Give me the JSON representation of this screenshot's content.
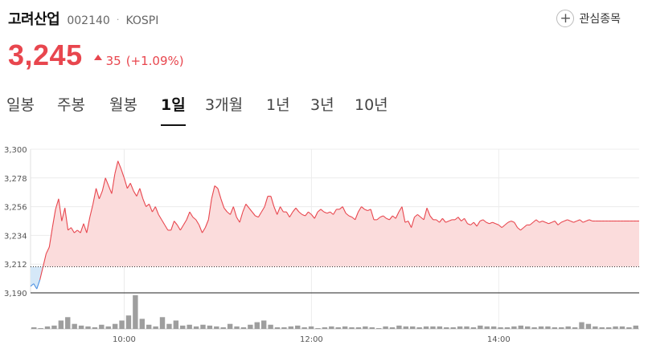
{
  "stock": {
    "name": "고려산업",
    "code": "002140",
    "separator": "·",
    "market": "KOSPI",
    "price": "3,245",
    "change": "35",
    "change_pct": "(+1.09%)",
    "direction": "up"
  },
  "watchlist": {
    "label": "관심종목",
    "icon": "plus-icon"
  },
  "tabs": [
    {
      "label": "일봉",
      "active": false
    },
    {
      "label": "주봉",
      "active": false
    },
    {
      "label": "월봉",
      "active": false
    },
    {
      "label": "1일",
      "active": true
    },
    {
      "label": "3개월",
      "active": false
    },
    {
      "label": "1년",
      "active": false
    },
    {
      "label": "3년",
      "active": false
    },
    {
      "label": "10년",
      "active": false
    }
  ],
  "colors": {
    "up": "#e8464e",
    "down": "#4a90e2",
    "fill_up": "#fbdcdc",
    "fill_down": "#d5e8f8",
    "volume": "#9e9e9e"
  },
  "chart_data": {
    "type": "area",
    "ylim": [
      3190,
      3300
    ],
    "yticks": [
      "3,300",
      "3,278",
      "3,256",
      "3,234",
      "3,212",
      "3,190"
    ],
    "ytick_values": [
      3300,
      3278,
      3256,
      3234,
      3212,
      3190
    ],
    "xticks": [
      "10:00",
      "12:00",
      "14:00"
    ],
    "xtick_minutes": [
      60,
      180,
      300
    ],
    "session_minutes": 390,
    "base_price": 3210,
    "series": [
      {
        "x": [
          0,
          2,
          4,
          6,
          8,
          10,
          12,
          14,
          16,
          18,
          20,
          22,
          24,
          26,
          28,
          30,
          32,
          34,
          36,
          38,
          40,
          42,
          44,
          46,
          48,
          50,
          52,
          54,
          56,
          58,
          60,
          62,
          64,
          66,
          68,
          70,
          72,
          74,
          76,
          78,
          80,
          82,
          84,
          86,
          88,
          90,
          92,
          94,
          96,
          98,
          100,
          102,
          104,
          106,
          108,
          110,
          112,
          114,
          116,
          118,
          120,
          122,
          124,
          126,
          128,
          130,
          132,
          134,
          136,
          138,
          140,
          142,
          144,
          146,
          148,
          150,
          152,
          154,
          156,
          158,
          160,
          162,
          164,
          166,
          168,
          170,
          172,
          174,
          176,
          178,
          180,
          182,
          184,
          186,
          188,
          190,
          192,
          194,
          196,
          198,
          200,
          202,
          204,
          206,
          208,
          210,
          212,
          214,
          216,
          218,
          220,
          222,
          224,
          226,
          228,
          230,
          232,
          234,
          236,
          238,
          240,
          242,
          244,
          246,
          248,
          250,
          252,
          254,
          256,
          258,
          260,
          262,
          264,
          266,
          268,
          270,
          272,
          274,
          276,
          278,
          280,
          282,
          284,
          286,
          288,
          290,
          292,
          294,
          296,
          298,
          300,
          302,
          304,
          306,
          308,
          310,
          312,
          314,
          316,
          318,
          320,
          322,
          324,
          326,
          328,
          330,
          332,
          334,
          336,
          338,
          340,
          342,
          344,
          346,
          348,
          350,
          352,
          354,
          356,
          358,
          360,
          362,
          364,
          366,
          368,
          370,
          372,
          374,
          376,
          378,
          380,
          382,
          384,
          386,
          388,
          390
        ],
        "y": [
          3195,
          3197,
          3193,
          3200,
          3210,
          3220,
          3225,
          3240,
          3254,
          3262,
          3245,
          3255,
          3238,
          3240,
          3236,
          3238,
          3236,
          3243,
          3236,
          3248,
          3258,
          3270,
          3262,
          3268,
          3278,
          3272,
          3266,
          3281,
          3291,
          3285,
          3278,
          3270,
          3274,
          3268,
          3264,
          3270,
          3262,
          3256,
          3258,
          3252,
          3256,
          3250,
          3246,
          3242,
          3238,
          3238,
          3245,
          3242,
          3238,
          3242,
          3246,
          3252,
          3248,
          3246,
          3242,
          3236,
          3240,
          3246,
          3262,
          3272,
          3270,
          3262,
          3255,
          3252,
          3250,
          3256,
          3248,
          3244,
          3252,
          3258,
          3255,
          3252,
          3249,
          3248,
          3252,
          3256,
          3264,
          3264,
          3256,
          3250,
          3256,
          3252,
          3252,
          3248,
          3252,
          3255,
          3252,
          3250,
          3249,
          3252,
          3250,
          3247,
          3252,
          3254,
          3252,
          3251,
          3252,
          3250,
          3254,
          3254,
          3256,
          3251,
          3249,
          3248,
          3246,
          3252,
          3256,
          3254,
          3253,
          3254,
          3246,
          3246,
          3248,
          3249,
          3247,
          3246,
          3249,
          3247,
          3252,
          3256,
          3244,
          3245,
          3240,
          3248,
          3250,
          3248,
          3246,
          3255,
          3249,
          3246,
          3246,
          3244,
          3247,
          3244,
          3245,
          3246,
          3246,
          3248,
          3245,
          3247,
          3243,
          3242,
          3244,
          3241,
          3245,
          3246,
          3244,
          3243,
          3244,
          3243,
          3242,
          3240,
          3242,
          3244,
          3245,
          3244,
          3240,
          3238,
          3240,
          3242,
          3242,
          3244,
          3246,
          3244,
          3245,
          3244,
          3243,
          3244,
          3245,
          3242,
          3244,
          3245,
          3246,
          3245,
          3244,
          3245,
          3246,
          3244,
          3245,
          3246,
          3245,
          3245,
          3245,
          3245,
          3245,
          3245,
          3245,
          3245,
          3245,
          3245,
          3245,
          3245,
          3245,
          3245,
          3245,
          3245
        ]
      }
    ],
    "volume": [
      2,
      1,
      3,
      4,
      10,
      14,
      6,
      4,
      3,
      2,
      5,
      3,
      6,
      10,
      16,
      40,
      12,
      5,
      3,
      14,
      6,
      10,
      4,
      5,
      3,
      5,
      4,
      3,
      2,
      6,
      3,
      2,
      5,
      8,
      10,
      5,
      2,
      2,
      3,
      4,
      2,
      3,
      1,
      2,
      3,
      2,
      3,
      2,
      2,
      3,
      2,
      1,
      3,
      2,
      4,
      3,
      3,
      2,
      3,
      3,
      3,
      2,
      2,
      3,
      3,
      2,
      4,
      3,
      3,
      2,
      2,
      3,
      4,
      3,
      2,
      3,
      3,
      2,
      2,
      3,
      2,
      8,
      6,
      3,
      2,
      2,
      3,
      3,
      2,
      4
    ]
  }
}
